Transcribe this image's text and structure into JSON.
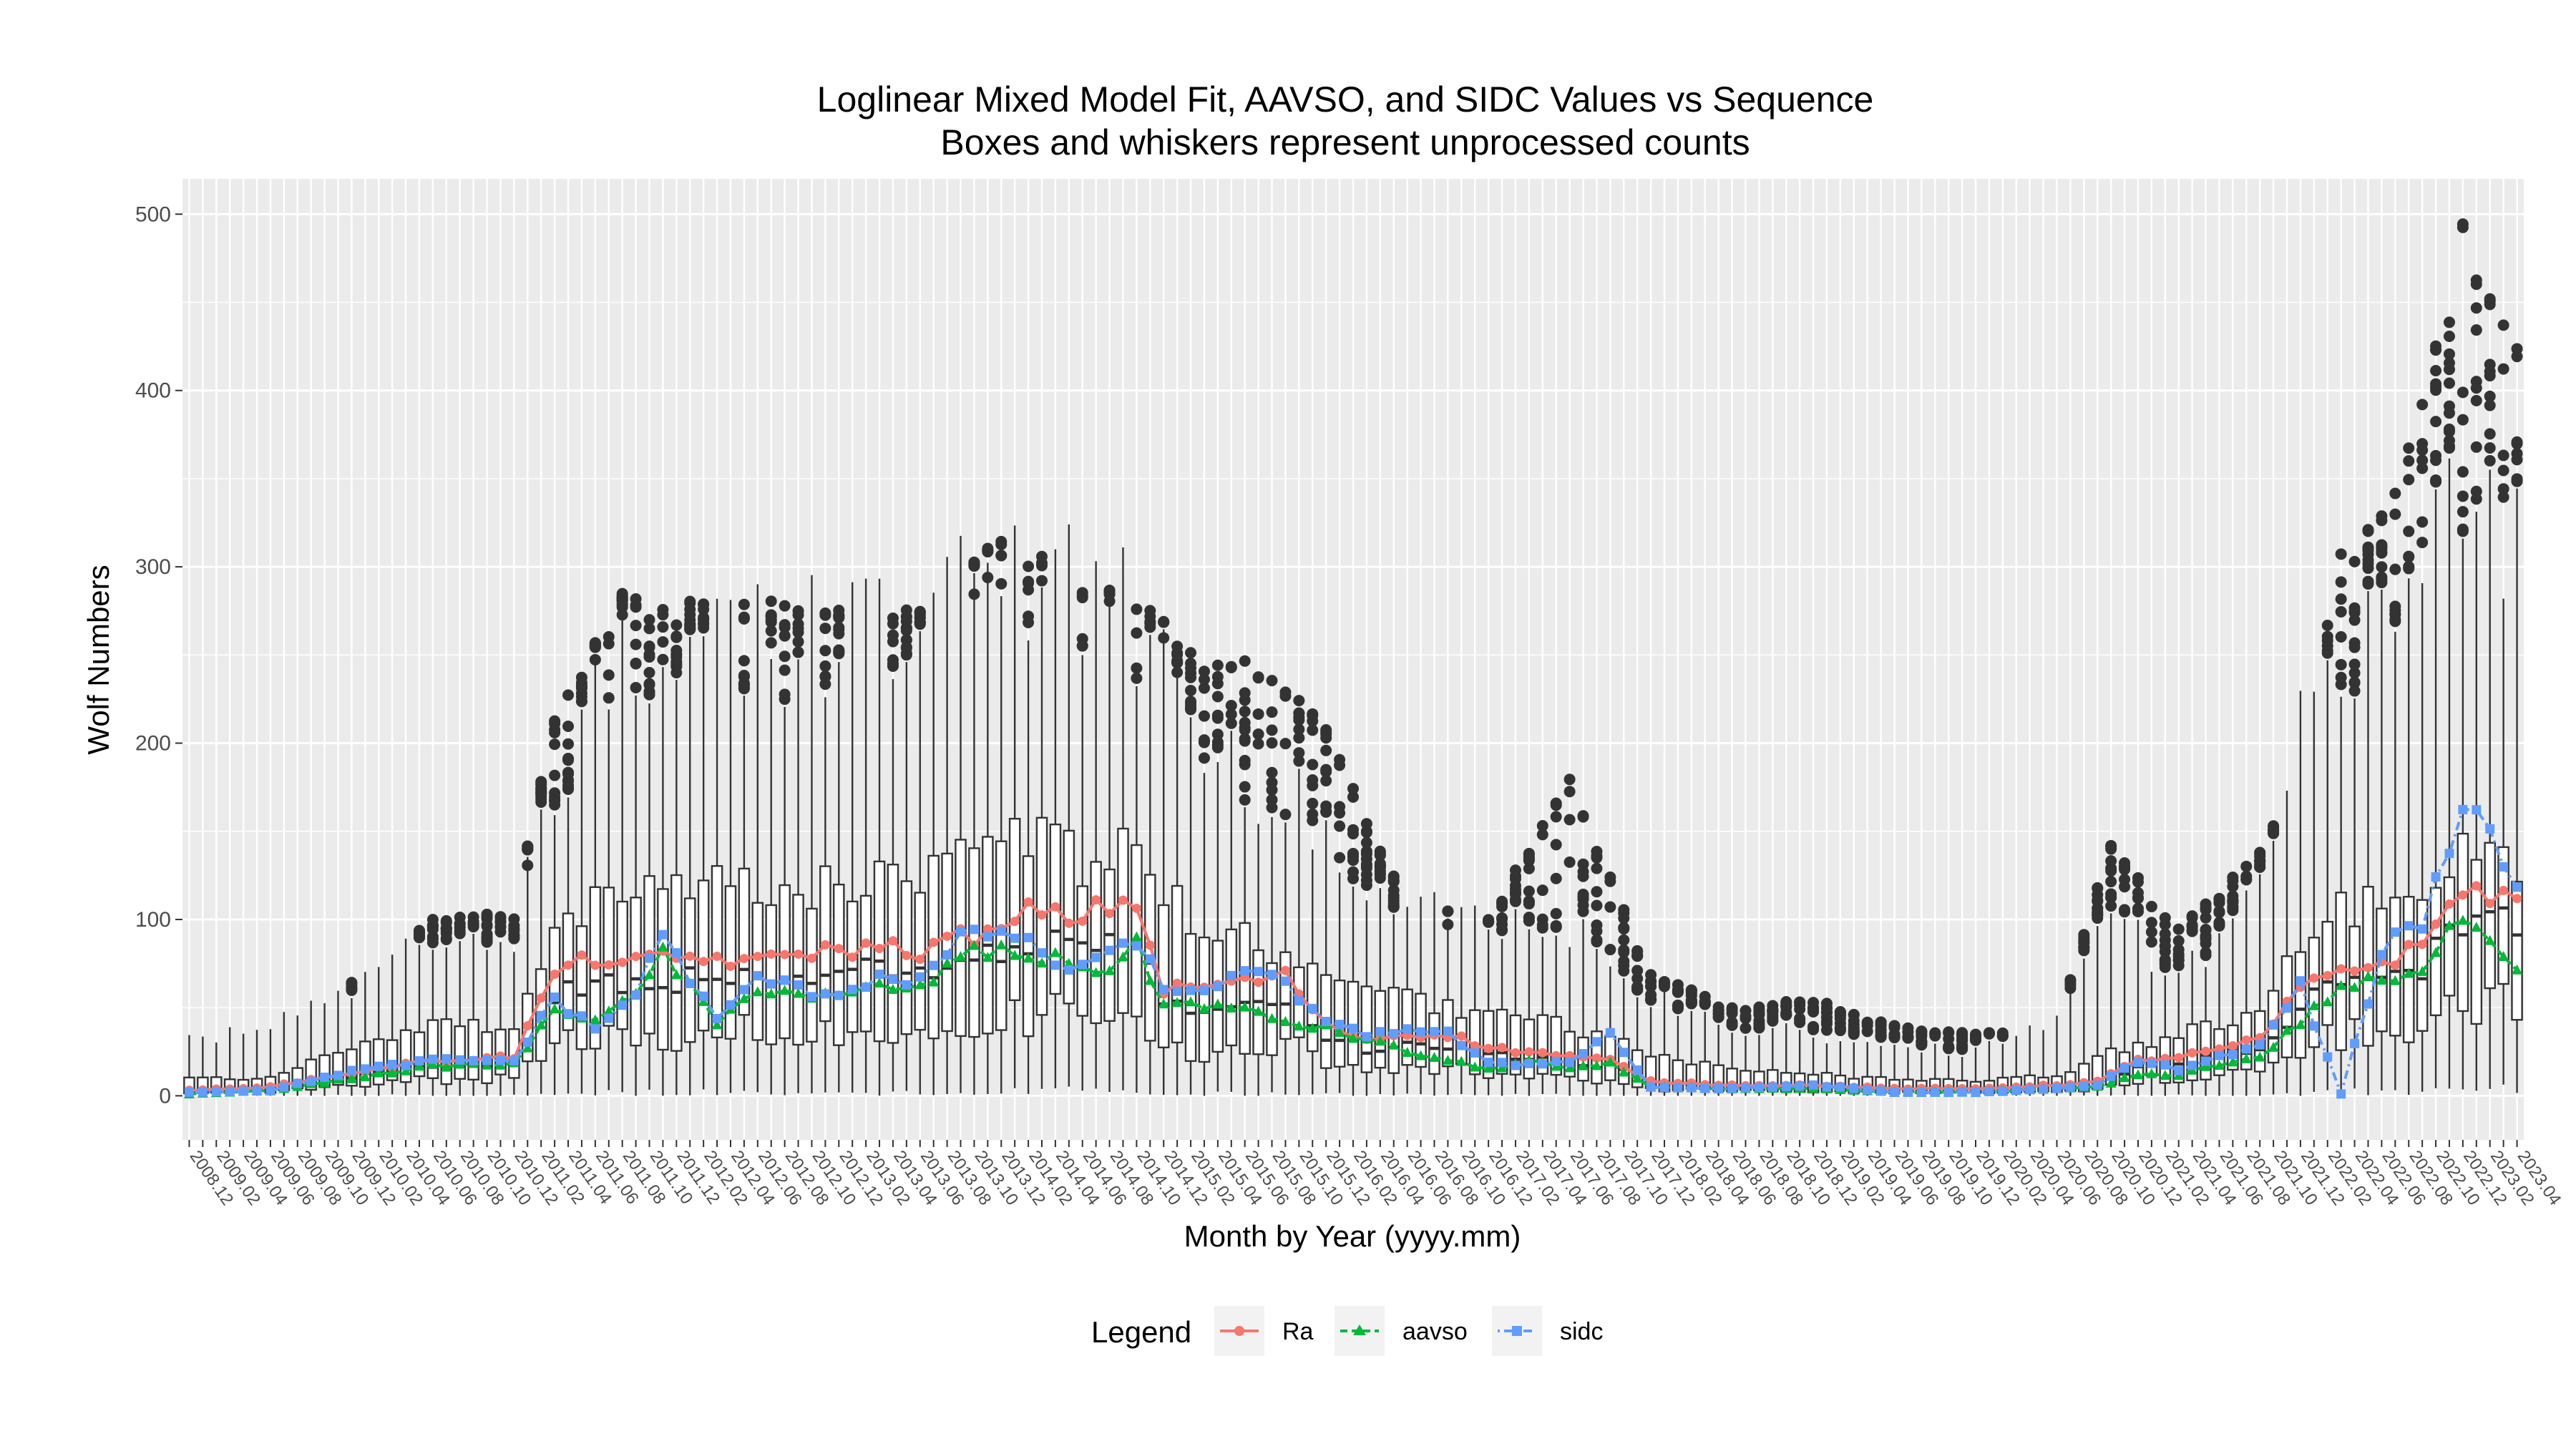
{
  "chart_data": {
    "type": "box+line",
    "title": "Loglinear Mixed Model Fit, AAVSO, and SIDC Values vs Sequence",
    "subtitle": "Boxes and whiskers represent unprocessed counts",
    "xlabel": "Month by Year (yyyy.mm)",
    "ylabel": "Wolf Numbers",
    "ylim": [
      -25,
      520
    ],
    "yticks": [
      0,
      100,
      200,
      300,
      400,
      500
    ],
    "grid": true,
    "legend_position": "bottom",
    "legend": {
      "title": "Legend",
      "entries": [
        "Ra",
        "aavso",
        "sidc"
      ]
    },
    "series_colors": {
      "Ra": "#F8766D",
      "aavso": "#00BA38",
      "sidc": "#619CFF"
    },
    "x_start": "2008.12",
    "x_end": "2023.04",
    "x_label_step_months": 2,
    "x_tick_labels": [
      "2008.12",
      "2009.02",
      "2009.04",
      "2009.06",
      "2009.08",
      "2009.10",
      "2009.12",
      "2010.02",
      "2010.04",
      "2010.06",
      "2010.08",
      "2010.10",
      "2010.12",
      "2011.02",
      "2011.04",
      "2011.06",
      "2011.08",
      "2011.10",
      "2011.12",
      "2012.02",
      "2012.04",
      "2012.06",
      "2012.08",
      "2012.10",
      "2012.12",
      "2013.02",
      "2013.04",
      "2013.06",
      "2013.08",
      "2013.10",
      "2013.12",
      "2014.02",
      "2014.04",
      "2014.06",
      "2014.08",
      "2014.10",
      "2014.12",
      "2015.02",
      "2015.04",
      "2015.06",
      "2015.08",
      "2015.10",
      "2015.12",
      "2016.02",
      "2016.04",
      "2016.06",
      "2016.08",
      "2016.10",
      "2016.12",
      "2017.02",
      "2017.04",
      "2017.06",
      "2017.08",
      "2017.10",
      "2017.12",
      "2018.02",
      "2018.04",
      "2018.06",
      "2018.08",
      "2018.10",
      "2018.12",
      "2019.02",
      "2019.04",
      "2019.06",
      "2019.08",
      "2019.10",
      "2019.12",
      "2020.02",
      "2020.04",
      "2020.06",
      "2020.08",
      "2020.10",
      "2020.12",
      "2021.02",
      "2021.04",
      "2021.06",
      "2021.08",
      "2021.10",
      "2021.12",
      "2022.02",
      "2022.04",
      "2022.06",
      "2022.08",
      "2022.10",
      "2022.12",
      "2023.02",
      "2023.04"
    ],
    "anchors": {
      "months": [
        "2008.12",
        "2009.06",
        "2009.12",
        "2010.06",
        "2010.12",
        "2011.03",
        "2011.06",
        "2011.09",
        "2011.11",
        "2012.03",
        "2012.06",
        "2012.09",
        "2012.12",
        "2013.03",
        "2013.06",
        "2013.09",
        "2013.12",
        "2014.02",
        "2014.05",
        "2014.08",
        "2014.10",
        "2014.12",
        "2015.03",
        "2015.06",
        "2015.09",
        "2015.12",
        "2016.03",
        "2016.06",
        "2016.09",
        "2016.12",
        "2017.03",
        "2017.06",
        "2017.09",
        "2017.12",
        "2018.06",
        "2018.12",
        "2019.06",
        "2019.12",
        "2020.06",
        "2020.09",
        "2020.12",
        "2021.03",
        "2021.06",
        "2021.09",
        "2021.12",
        "2022.03",
        "2022.06",
        "2022.09",
        "2022.12",
        "2023.02",
        "2023.04"
      ],
      "Ra": [
        3,
        5,
        13,
        20,
        22,
        70,
        78,
        75,
        78,
        78,
        75,
        82,
        82,
        85,
        82,
        90,
        92,
        105,
        100,
        108,
        110,
        60,
        62,
        65,
        68,
        40,
        32,
        35,
        35,
        27,
        25,
        22,
        20,
        8,
        6,
        6,
        4,
        4,
        6,
        8,
        20,
        22,
        26,
        32,
        60,
        72,
        75,
        85,
        120,
        110,
        115
      ],
      "aavso": [
        1,
        3,
        10,
        17,
        18,
        48,
        45,
        55,
        82,
        40,
        62,
        58,
        55,
        62,
        60,
        80,
        82,
        80,
        75,
        72,
        85,
        52,
        52,
        48,
        42,
        38,
        32,
        25,
        20,
        15,
        20,
        15,
        18,
        5,
        4,
        4,
        2,
        2,
        4,
        5,
        12,
        12,
        18,
        22,
        42,
        62,
        65,
        68,
        105,
        90,
        75
      ],
      "sidc": [
        2,
        3,
        14,
        20,
        20,
        55,
        38,
        58,
        92,
        42,
        68,
        60,
        58,
        68,
        65,
        88,
        95,
        85,
        72,
        78,
        90,
        58,
        62,
        68,
        65,
        40,
        35,
        38,
        35,
        18,
        18,
        20,
        35,
        5,
        4,
        6,
        2,
        2,
        4,
        6,
        20,
        15,
        22,
        28,
        62,
        1,
        82,
        100,
        165,
        150,
        120
      ]
    },
    "box_envelope": {
      "months": [
        "2008.12",
        "2009.06",
        "2009.12",
        "2010.06",
        "2010.12",
        "2011.03",
        "2011.08",
        "2011.11",
        "2012.06",
        "2013.06",
        "2013.12",
        "2014.06",
        "2014.10",
        "2015.03",
        "2015.08",
        "2015.12",
        "2016.06",
        "2016.12",
        "2017.06",
        "2017.12",
        "2018.06",
        "2018.12",
        "2019.06",
        "2019.12",
        "2020.06",
        "2020.10",
        "2021.03",
        "2021.09",
        "2021.12",
        "2022.03",
        "2022.06",
        "2022.09",
        "2022.12",
        "2023.04"
      ],
      "q3": [
        10,
        10,
        28,
        40,
        40,
        90,
        125,
        130,
        115,
        125,
        150,
        135,
        140,
        95,
        85,
        70,
        55,
        45,
        40,
        25,
        15,
        12,
        10,
        8,
        12,
        25,
        35,
        45,
        90,
        105,
        110,
        125,
        140,
        130
      ],
      "whisker": [
        30,
        40,
        65,
        90,
        95,
        170,
        250,
        260,
        255,
        265,
        290,
        290,
        270,
        195,
        175,
        150,
        110,
        95,
        95,
        55,
        40,
        35,
        30,
        25,
        40,
        100,
        70,
        110,
        210,
        250,
        270,
        300,
        340,
        320
      ],
      "outlier": [
        35,
        20,
        65,
        100,
        105,
        215,
        285,
        280,
        285,
        275,
        318,
        295,
        285,
        245,
        250,
        210,
        110,
        100,
        185,
        70,
        50,
        55,
        40,
        35,
        40,
        145,
        95,
        140,
        185,
        310,
        335,
        395,
        495,
        425
      ]
    }
  }
}
